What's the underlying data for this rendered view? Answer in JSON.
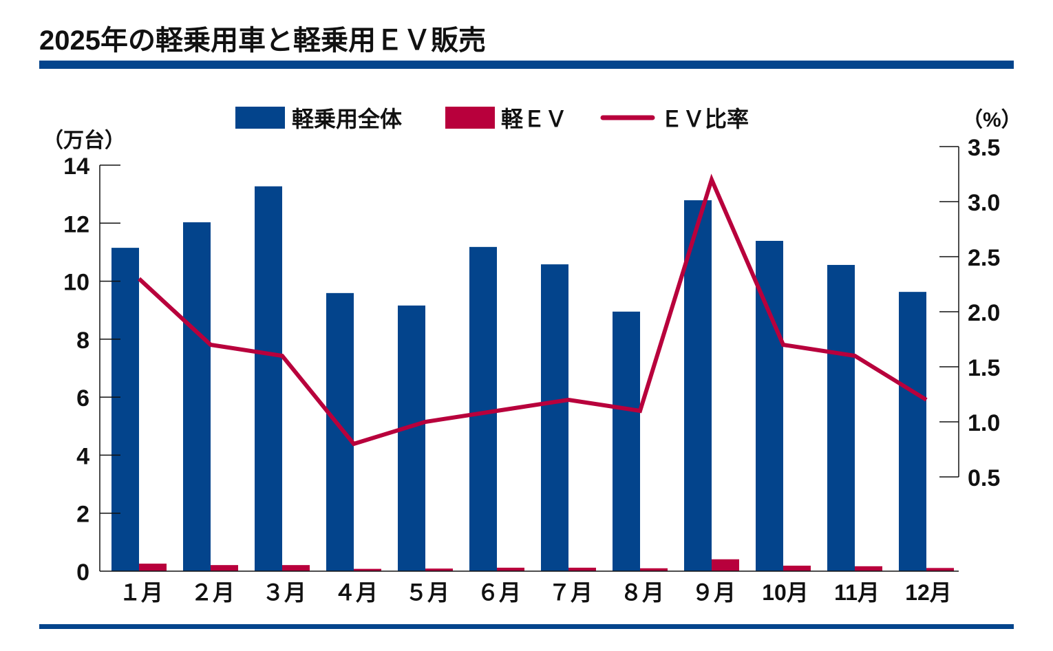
{
  "colors": {
    "total": "#03448c",
    "ev": "#b8003c",
    "ratio": "#b8003c",
    "rule": "#03448c"
  },
  "chart_data": {
    "type": "bar",
    "title": "2025年の軽乗用車と軽乗用ＥＶ販売",
    "categories": [
      "１月",
      "２月",
      "３月",
      "４月",
      "５月",
      "６月",
      "７月",
      "８月",
      "９月",
      "10月",
      "11月",
      "12月"
    ],
    "left_axis": {
      "label": "（万台）",
      "range": [
        0,
        14
      ],
      "ticks": [
        "0",
        "2",
        "4",
        "6",
        "8",
        "10",
        "12",
        "14"
      ]
    },
    "right_axis": {
      "label": "（%）",
      "range": [
        0.5,
        3.5
      ],
      "ticks": [
        "0.5",
        "1.0",
        "1.5",
        "2.0",
        "2.5",
        "3.0",
        "3.5"
      ]
    },
    "legend": [
      "軽乗用全体",
      "軽ＥＶ",
      "ＥＶ比率"
    ],
    "legend_position": "top",
    "series": [
      {
        "name": "軽乗用全体",
        "type": "bar",
        "axis": "left",
        "values": [
          11.15,
          12.03,
          13.27,
          9.59,
          9.16,
          11.18,
          10.58,
          8.95,
          12.79,
          11.39,
          10.56,
          9.63
        ]
      },
      {
        "name": "軽ＥＶ",
        "type": "bar",
        "axis": "left",
        "values": [
          0.26,
          0.21,
          0.21,
          0.08,
          0.09,
          0.12,
          0.12,
          0.1,
          0.41,
          0.19,
          0.17,
          0.11
        ]
      },
      {
        "name": "ＥＶ比率",
        "type": "line",
        "axis": "right",
        "values": [
          2.3,
          1.7,
          1.6,
          0.8,
          1.0,
          1.1,
          1.2,
          1.1,
          3.2,
          1.7,
          1.6,
          1.2
        ]
      }
    ]
  }
}
